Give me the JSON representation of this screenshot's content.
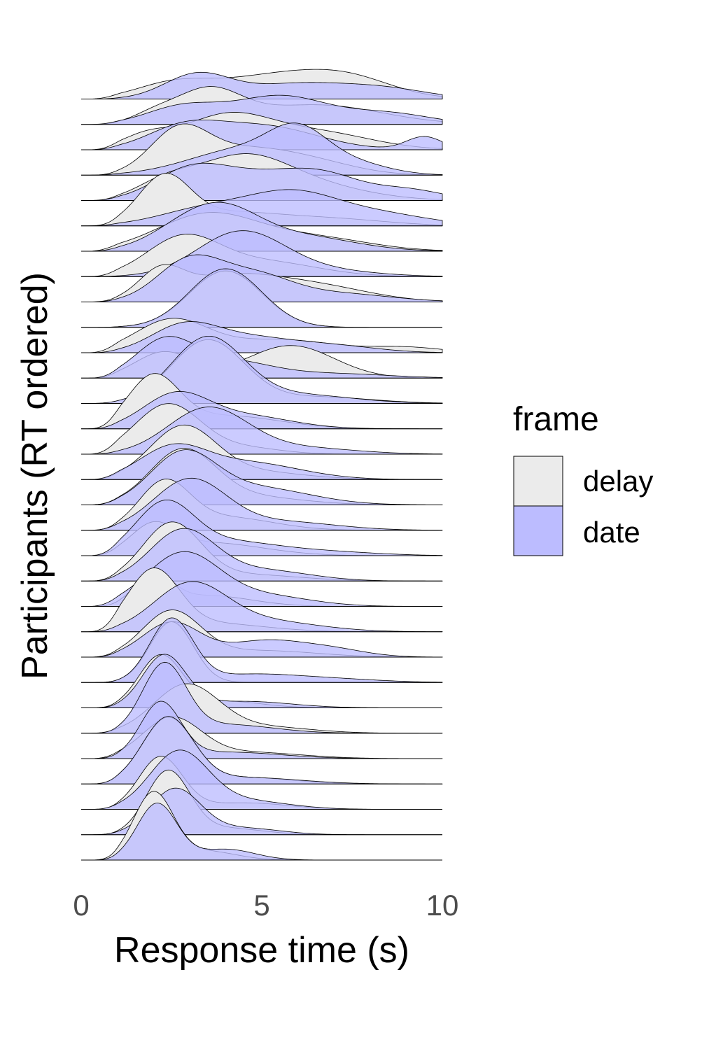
{
  "chart_data": {
    "type": "ridgeline",
    "title": "",
    "xlabel": "Response time (s)",
    "ylabel": "Participants (RT ordered)",
    "xlim": [
      0,
      10
    ],
    "xticks": [
      0,
      5,
      10
    ],
    "xtick_labels": [
      "0",
      "5",
      "10"
    ],
    "grid": false,
    "legend": {
      "title": "frame",
      "placement": "right",
      "entries": [
        {
          "label": "delay",
          "color": "#ebebeb"
        },
        {
          "label": "date",
          "color": "#bcbcff"
        }
      ]
    },
    "series_colors": {
      "delay": "#ebebeb",
      "date": "#bcbcff",
      "outline": "#000000"
    },
    "participant_count": 31,
    "participants": [
      {
        "rank": 1,
        "delay": [
          [
            2.5,
            0.3,
            1.0
          ],
          [
            5.5,
            0.55,
            1.8
          ],
          [
            7.5,
            0.3,
            1.2
          ]
        ],
        "date": [
          [
            3.2,
            0.55,
            0.9
          ],
          [
            6.0,
            0.35,
            1.5
          ],
          [
            8.5,
            0.2,
            1.2
          ]
        ]
      },
      {
        "rank": 2,
        "delay": [
          [
            2.0,
            0.2,
            0.6
          ],
          [
            3.5,
            0.75,
            0.9
          ],
          [
            6.5,
            0.45,
            1.8
          ]
        ],
        "date": [
          [
            2.8,
            0.4,
            1.0
          ],
          [
            5.5,
            0.65,
            1.3
          ],
          [
            8.5,
            0.25,
            1.2
          ]
        ]
      },
      {
        "rank": 3,
        "delay": [
          [
            1.8,
            0.3,
            0.7
          ],
          [
            4.0,
            0.75,
            1.2
          ],
          [
            6.5,
            0.4,
            1.5
          ]
        ],
        "date": [
          [
            2.8,
            0.45,
            1.0
          ],
          [
            5.0,
            0.55,
            1.5
          ],
          [
            9.5,
            0.3,
            0.5
          ]
        ]
      },
      {
        "rank": 4,
        "delay": [
          [
            2.7,
            0.95,
            0.8
          ],
          [
            4.5,
            0.55,
            1.3
          ],
          [
            6.5,
            0.25,
            1.2
          ]
        ],
        "date": [
          [
            4.5,
            0.6,
            1.5
          ],
          [
            6.0,
            0.75,
            0.8
          ],
          [
            7.5,
            0.25,
            1.0
          ]
        ]
      },
      {
        "rank": 5,
        "delay": [
          [
            2.3,
            0.35,
            0.8
          ],
          [
            4.4,
            0.95,
            1.3
          ],
          [
            6.5,
            0.3,
            1.5
          ]
        ],
        "date": [
          [
            3.0,
            0.65,
            1.0
          ],
          [
            5.0,
            0.55,
            1.3
          ],
          [
            6.8,
            0.45,
            1.0
          ],
          [
            9.0,
            0.25,
            1.0
          ]
        ]
      },
      {
        "rank": 6,
        "delay": [
          [
            2.3,
            1.05,
            0.7
          ],
          [
            4.0,
            0.3,
            1.5
          ],
          [
            7.0,
            0.15,
            1.5
          ]
        ],
        "date": [
          [
            3.5,
            0.4,
            1.3
          ],
          [
            5.8,
            0.65,
            1.2
          ],
          [
            8.0,
            0.3,
            1.5
          ]
        ]
      },
      {
        "rank": 7,
        "delay": [
          [
            3.5,
            0.85,
            1.4
          ],
          [
            6.5,
            0.3,
            1.5
          ]
        ],
        "date": [
          [
            2.8,
            0.45,
            1.0
          ],
          [
            4.0,
            0.75,
            1.0
          ],
          [
            6.0,
            0.35,
            1.5
          ]
        ]
      },
      {
        "rank": 8,
        "delay": [
          [
            2.8,
            0.85,
            1.0
          ],
          [
            5.0,
            0.35,
            1.5
          ]
        ],
        "date": [
          [
            4.4,
            1.0,
            1.2
          ],
          [
            6.5,
            0.15,
            1.5
          ]
        ]
      },
      {
        "rank": 9,
        "delay": [
          [
            2.2,
            0.6,
            0.6
          ],
          [
            4.0,
            0.55,
            1.4
          ],
          [
            6.5,
            0.35,
            1.5
          ]
        ],
        "date": [
          [
            3.0,
            0.95,
            0.9
          ],
          [
            4.8,
            0.55,
            1.0
          ],
          [
            7.0,
            0.2,
            1.5
          ]
        ]
      },
      {
        "rank": 10,
        "delay": [
          [
            4.0,
            1.3,
            1.0
          ]
        ],
        "date": [
          [
            4.0,
            1.35,
            1.0
          ]
        ]
      },
      {
        "rank": 11,
        "delay": [
          [
            2.5,
            0.75,
            1.0
          ],
          [
            5.5,
            0.3,
            1.5
          ],
          [
            9.0,
            0.12,
            1.0
          ]
        ],
        "date": [
          [
            2.8,
            0.55,
            0.9
          ],
          [
            4.5,
            0.35,
            1.3
          ],
          [
            7.0,
            0.15,
            1.2
          ]
        ]
      },
      {
        "rank": 12,
        "delay": [
          [
            2.3,
            0.6,
            0.8
          ],
          [
            5.8,
            0.75,
            1.2
          ]
        ],
        "date": [
          [
            2.3,
            0.8,
            0.8
          ],
          [
            4.0,
            0.4,
            1.2
          ],
          [
            7.0,
            0.1,
            1.5
          ]
        ]
      },
      {
        "rank": 13,
        "delay": [
          [
            3.5,
            1.45,
            1.0
          ],
          [
            6.5,
            0.15,
            1.5
          ]
        ],
        "date": [
          [
            3.5,
            1.5,
            1.0
          ],
          [
            6.0,
            0.2,
            1.5
          ]
        ]
      },
      {
        "rank": 14,
        "delay": [
          [
            2.0,
            1.15,
            0.7
          ],
          [
            4.0,
            0.3,
            1.5
          ]
        ],
        "date": [
          [
            2.6,
            0.75,
            0.9
          ],
          [
            4.5,
            0.3,
            1.3
          ]
        ]
      },
      {
        "rank": 15,
        "delay": [
          [
            2.4,
            1.15,
            0.9
          ],
          [
            4.5,
            0.15,
            1.0
          ]
        ],
        "date": [
          [
            3.5,
            1.05,
            1.1
          ],
          [
            6.0,
            0.15,
            1.5
          ]
        ]
      },
      {
        "rank": 16,
        "delay": [
          [
            2.8,
            1.15,
            0.9
          ],
          [
            4.5,
            0.2,
            1.5
          ]
        ],
        "date": [
          [
            2.5,
            0.65,
            0.9
          ],
          [
            4.5,
            0.4,
            1.5
          ]
        ]
      },
      {
        "rank": 17,
        "delay": [
          [
            2.8,
            1.2,
            0.9
          ],
          [
            4.5,
            0.2,
            1.5
          ]
        ],
        "date": [
          [
            2.8,
            1.1,
            0.9
          ],
          [
            4.8,
            0.4,
            1.5
          ]
        ]
      },
      {
        "rank": 18,
        "delay": [
          [
            2.3,
            1.05,
            0.7
          ],
          [
            4.0,
            0.3,
            1.3
          ]
        ],
        "date": [
          [
            3.0,
            1.15,
            1.0
          ],
          [
            5.5,
            0.2,
            1.5
          ]
        ]
      },
      {
        "rank": 19,
        "delay": [
          [
            2.0,
            0.6,
            0.6
          ],
          [
            3.5,
            0.3,
            1.5
          ]
        ],
        "date": [
          [
            2.3,
            1.15,
            0.8
          ],
          [
            4.0,
            0.3,
            1.3
          ],
          [
            6.5,
            0.1,
            1.5
          ]
        ]
      },
      {
        "rank": 20,
        "delay": [
          [
            2.5,
            1.3,
            0.8
          ],
          [
            4.5,
            0.15,
            1.5
          ]
        ],
        "date": [
          [
            2.8,
            1.15,
            0.9
          ],
          [
            5.0,
            0.25,
            1.3
          ]
        ]
      },
      {
        "rank": 21,
        "delay": [
          [
            2.0,
            0.7,
            0.5
          ],
          [
            3.5,
            0.25,
            1.2
          ]
        ],
        "date": [
          [
            2.8,
            1.2,
            1.0
          ],
          [
            5.0,
            0.25,
            1.3
          ]
        ]
      },
      {
        "rank": 22,
        "delay": [
          [
            2.0,
            1.35,
            0.7
          ],
          [
            3.5,
            0.2,
            1.5
          ]
        ],
        "date": [
          [
            3.0,
            1.05,
            1.0
          ],
          [
            5.0,
            0.25,
            1.5
          ]
        ]
      },
      {
        "rank": 23,
        "delay": [
          [
            2.5,
            1.05,
            0.8
          ],
          [
            5.0,
            0.15,
            1.5
          ]
        ],
        "date": [
          [
            2.5,
            0.8,
            0.8
          ],
          [
            5.0,
            0.35,
            1.0
          ],
          [
            6.8,
            0.2,
            1.0
          ]
        ]
      },
      {
        "rank": 24,
        "delay": [
          [
            2.5,
            1.4,
            0.6
          ]
        ],
        "date": [
          [
            2.5,
            1.45,
            0.6
          ],
          [
            4.5,
            0.15,
            1.2
          ],
          [
            6.5,
            0.1,
            1.5
          ]
        ]
      },
      {
        "rank": 25,
        "delay": [
          [
            2.2,
            1.2,
            0.6
          ],
          [
            4.0,
            0.15,
            1.0
          ]
        ],
        "date": [
          [
            2.3,
            1.2,
            0.6
          ],
          [
            4.5,
            0.15,
            1.3
          ]
        ]
      },
      {
        "rank": 26,
        "delay": [
          [
            2.9,
            1.1,
            0.9
          ],
          [
            5.0,
            0.15,
            1.3
          ]
        ],
        "date": [
          [
            2.3,
            1.55,
            0.6
          ],
          [
            4.0,
            0.2,
            1.3
          ]
        ]
      },
      {
        "rank": 27,
        "delay": [
          [
            2.5,
            0.9,
            0.8
          ],
          [
            4.5,
            0.15,
            1.5
          ]
        ],
        "date": [
          [
            2.2,
            1.25,
            0.55
          ],
          [
            4.0,
            0.15,
            1.5
          ]
        ]
      },
      {
        "rank": 28,
        "delay": [
          [
            2.4,
            1.5,
            0.7
          ],
          [
            4.5,
            0.15,
            1.3
          ]
        ],
        "date": [
          [
            2.4,
            1.5,
            0.7
          ],
          [
            4.5,
            0.15,
            1.5
          ]
        ]
      },
      {
        "rank": 29,
        "delay": [
          [
            2.2,
            1.2,
            0.6
          ],
          [
            4.5,
            0.15,
            1.2
          ]
        ],
        "date": [
          [
            2.7,
            1.3,
            0.8
          ],
          [
            4.5,
            0.2,
            1.2
          ]
        ]
      },
      {
        "rank": 30,
        "delay": [
          [
            2.4,
            1.45,
            0.6
          ],
          [
            4.0,
            0.15,
            1.0
          ]
        ],
        "date": [
          [
            2.6,
            1.05,
            0.7
          ],
          [
            4.5,
            0.15,
            1.0
          ]
        ]
      },
      {
        "rank": 31,
        "delay": [
          [
            2.0,
            1.55,
            0.55
          ],
          [
            3.5,
            0.2,
            0.8
          ]
        ],
        "date": [
          [
            2.1,
            1.3,
            0.55
          ],
          [
            4.0,
            0.25,
            0.8
          ]
        ]
      }
    ]
  }
}
